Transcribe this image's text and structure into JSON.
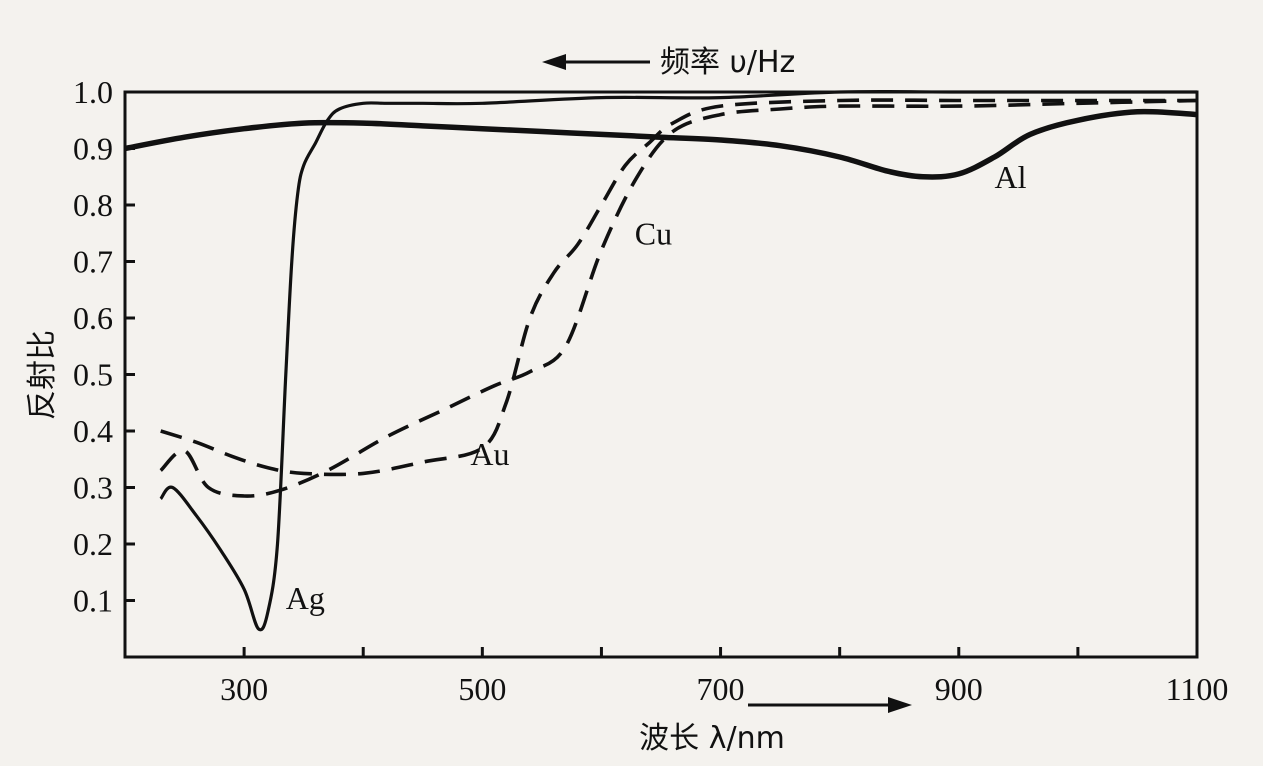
{
  "chart_data": {
    "type": "line",
    "title": "",
    "xlabel": "波长 λ/nm",
    "ylabel": "反射比",
    "top_axis_label": "频率 υ/Hz",
    "xlim": [
      200,
      1100
    ],
    "ylim": [
      0,
      1.0
    ],
    "x_ticks": [
      300,
      500,
      700,
      900,
      1100
    ],
    "y_ticks": [
      0.1,
      0.2,
      0.3,
      0.4,
      0.5,
      0.6,
      0.7,
      0.8,
      0.9,
      1.0
    ],
    "y_tick_labels": [
      "0.1",
      "0.2",
      "0.3",
      "0.4",
      "0.5",
      "0.6",
      "0.7",
      "0.8",
      "0.9",
      "1.0"
    ],
    "grid": false,
    "series": [
      {
        "name": "Ag",
        "style": "solid",
        "width": "thin",
        "label_at": [
          335,
          0.085
        ],
        "x": [
          230,
          240,
          260,
          280,
          300,
          312,
          320,
          328,
          335,
          340,
          345,
          350,
          360,
          370,
          380,
          400,
          420,
          450,
          500,
          600,
          700,
          800,
          900,
          1000,
          1100
        ],
        "y": [
          0.28,
          0.3,
          0.25,
          0.19,
          0.12,
          0.05,
          0.08,
          0.2,
          0.5,
          0.7,
          0.82,
          0.87,
          0.91,
          0.95,
          0.97,
          0.98,
          0.98,
          0.98,
          0.98,
          0.99,
          0.99,
          1.0,
          1.0,
          1.0,
          1.0
        ]
      },
      {
        "name": "Al",
        "style": "solid",
        "width": "thick",
        "label_at": [
          930,
          0.83
        ],
        "x": [
          200,
          250,
          300,
          350,
          400,
          450,
          500,
          550,
          600,
          650,
          700,
          750,
          800,
          840,
          870,
          900,
          930,
          960,
          1000,
          1050,
          1100
        ],
        "y": [
          0.9,
          0.92,
          0.935,
          0.945,
          0.945,
          0.94,
          0.935,
          0.93,
          0.925,
          0.92,
          0.915,
          0.905,
          0.885,
          0.86,
          0.85,
          0.855,
          0.885,
          0.925,
          0.95,
          0.965,
          0.96
        ]
      },
      {
        "name": "Cu",
        "style": "dashed",
        "width": "normal",
        "label_at": [
          628,
          0.73
        ],
        "x": [
          230,
          260,
          290,
          320,
          350,
          400,
          450,
          500,
          520,
          540,
          560,
          580,
          600,
          620,
          640,
          660,
          700,
          800,
          900,
          1000,
          1100
        ],
        "y": [
          0.4,
          0.38,
          0.355,
          0.335,
          0.325,
          0.325,
          0.345,
          0.37,
          0.45,
          0.6,
          0.68,
          0.73,
          0.8,
          0.87,
          0.91,
          0.945,
          0.975,
          0.985,
          0.985,
          0.985,
          0.985
        ]
      },
      {
        "name": "Au",
        "style": "dashed",
        "width": "normal",
        "label_at": [
          490,
          0.34
        ],
        "x": [
          230,
          250,
          270,
          300,
          330,
          370,
          420,
          470,
          510,
          540,
          570,
          600,
          630,
          660,
          700,
          750,
          800,
          900,
          1000,
          1100
        ],
        "y": [
          0.33,
          0.365,
          0.3,
          0.285,
          0.295,
          0.33,
          0.39,
          0.44,
          0.48,
          0.505,
          0.55,
          0.72,
          0.85,
          0.93,
          0.96,
          0.97,
          0.975,
          0.975,
          0.98,
          0.985
        ]
      }
    ]
  }
}
